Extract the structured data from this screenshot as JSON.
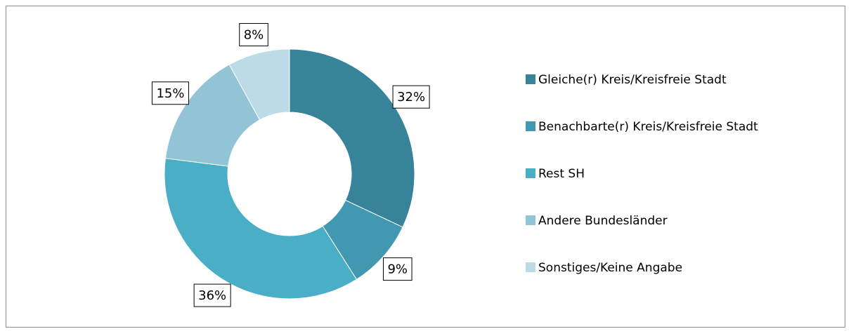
{
  "chart_data": {
    "type": "donut",
    "categories": [
      "Gleiche(r) Kreis/Kreisfreie Stadt",
      "Benachbarte(r) Kreis/Kreisfreie Stadt",
      "Rest SH",
      "Andere Bundesländer",
      "Sonstiges/Keine Angabe"
    ],
    "values": [
      32,
      9,
      36,
      15,
      8
    ],
    "value_labels": [
      "32%",
      "9%",
      "36%",
      "15%",
      "8%"
    ],
    "colors": [
      "#37849a",
      "#4198b0",
      "#4aaec6",
      "#93c4d5",
      "#bcdbe6"
    ],
    "legend": "right"
  }
}
